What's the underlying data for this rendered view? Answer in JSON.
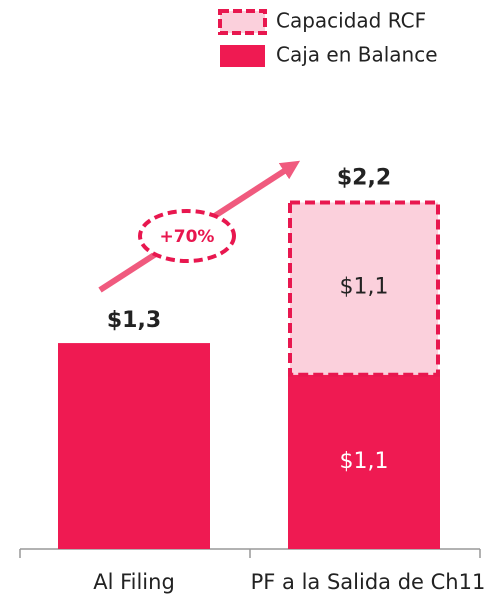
{
  "chart_data": {
    "type": "stacked_bar",
    "categories": [
      "Al Filing",
      "PF a la Salida de Ch11"
    ],
    "series": [
      {
        "name": "Caja en Balance",
        "color": "#ef1a52",
        "style": "solid",
        "values": [
          1.3,
          1.1
        ],
        "value_labels": [
          null,
          "$1,1"
        ]
      },
      {
        "name": "Capacidad RCF",
        "color": "#fbd0dc",
        "border_color": "#e8174f",
        "style": "dashed",
        "values": [
          null,
          1.1
        ],
        "value_labels": [
          null,
          "$1,1"
        ]
      }
    ],
    "totals": [
      1.3,
      2.2
    ],
    "total_labels": [
      "$1,3",
      "$2,2"
    ],
    "annotation": "+70%",
    "ylim": [
      0,
      2.5
    ]
  }
}
